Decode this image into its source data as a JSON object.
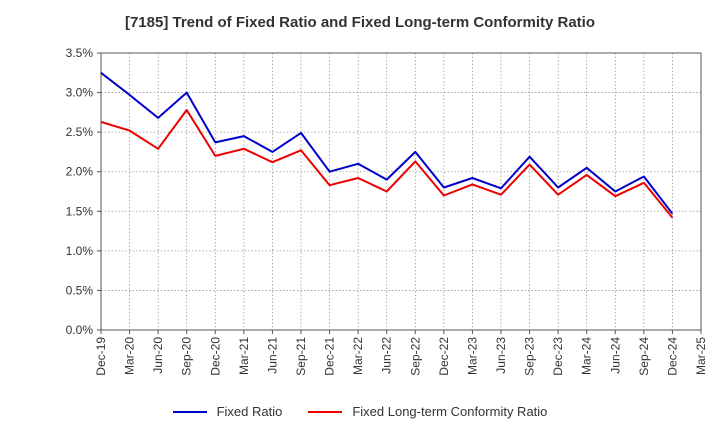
{
  "chart_data": {
    "type": "line",
    "title": "[7185]  Trend of Fixed Ratio and Fixed Long-term Conformity Ratio",
    "xlabel": "",
    "ylabel": "",
    "x": [
      "Dec-19",
      "Mar-20",
      "Jun-20",
      "Sep-20",
      "Dec-20",
      "Mar-21",
      "Jun-21",
      "Sep-21",
      "Dec-21",
      "Mar-22",
      "Jun-22",
      "Sep-22",
      "Dec-22",
      "Mar-23",
      "Jun-23",
      "Sep-23",
      "Dec-23",
      "Mar-24",
      "Jun-24",
      "Sep-24",
      "Dec-24",
      "Mar-25"
    ],
    "y_ticks": [
      "0.0%",
      "0.5%",
      "1.0%",
      "1.5%",
      "2.0%",
      "2.5%",
      "3.0%",
      "3.5%"
    ],
    "ylim": [
      0,
      3.5
    ],
    "y_unit": "%",
    "grid": true,
    "legend_position": "bottom",
    "series": [
      {
        "name": "Fixed Ratio",
        "color": "#0000cc",
        "values": [
          3.25,
          2.97,
          2.68,
          3.0,
          2.37,
          2.45,
          2.25,
          2.49,
          2.0,
          2.1,
          1.9,
          2.25,
          1.8,
          1.92,
          1.79,
          2.19,
          1.8,
          2.05,
          1.75,
          1.94,
          1.47,
          null
        ]
      },
      {
        "name": "Fixed Long-term Conformity Ratio",
        "color": "#ee0000",
        "values": [
          2.63,
          2.52,
          2.29,
          2.78,
          2.2,
          2.29,
          2.12,
          2.27,
          1.83,
          1.92,
          1.75,
          2.13,
          1.7,
          1.84,
          1.71,
          2.09,
          1.71,
          1.96,
          1.69,
          1.86,
          1.42,
          null
        ]
      }
    ]
  }
}
